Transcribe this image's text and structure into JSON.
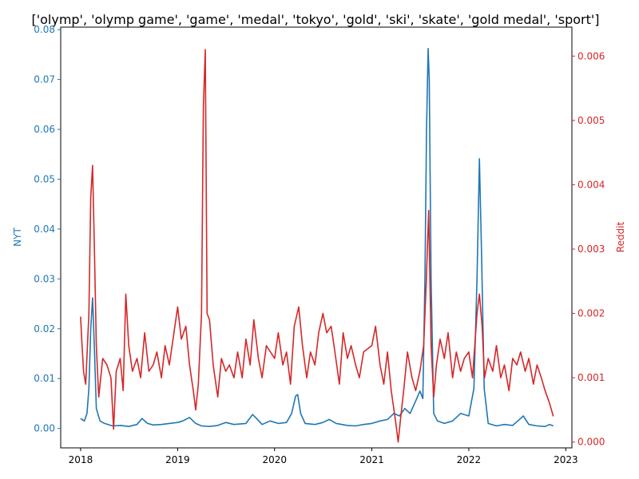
{
  "chart_data": {
    "type": "line",
    "title": "['olymp', 'olymp game', 'game', 'medal', 'tokyo', 'gold', 'ski', 'skate', 'gold medal', 'sport']",
    "colors": {
      "nyt": "#1f77b4",
      "reddit": "#d62728",
      "axis": "#000000"
    },
    "x_axis": {
      "label": "",
      "range": [
        "2017-10-18",
        "2023-01-24"
      ],
      "ticks": [
        "2018",
        "2019",
        "2020",
        "2021",
        "2022",
        "2023"
      ],
      "tick_dates": [
        "2018-01-01",
        "2019-01-01",
        "2020-01-01",
        "2021-01-01",
        "2022-01-01",
        "2023-01-01"
      ]
    },
    "y_axis_left": {
      "label": "NYT",
      "range": [
        -0.0039,
        0.0805
      ],
      "ticks": [
        "0.00",
        "0.01",
        "0.02",
        "0.03",
        "0.04",
        "0.05",
        "0.06",
        "0.07",
        "0.08"
      ],
      "tick_values": [
        0,
        0.01,
        0.02,
        0.03,
        0.04,
        0.05,
        0.06,
        0.07,
        0.08
      ]
    },
    "y_axis_right": {
      "label": "Reddit",
      "range": [
        -9e-05,
        0.00645
      ],
      "ticks": [
        "0.000",
        "0.001",
        "0.002",
        "0.003",
        "0.004",
        "0.005",
        "0.006"
      ],
      "tick_values": [
        0,
        0.001,
        0.002,
        0.003,
        0.004,
        0.005,
        0.006
      ]
    },
    "series": [
      {
        "name": "NYT",
        "axis": "left",
        "points": [
          [
            "2018-01-01",
            0.002
          ],
          [
            "2018-01-15",
            0.0015
          ],
          [
            "2018-01-25",
            0.003
          ],
          [
            "2018-02-01",
            0.008
          ],
          [
            "2018-02-08",
            0.02
          ],
          [
            "2018-02-15",
            0.0262
          ],
          [
            "2018-02-22",
            0.016
          ],
          [
            "2018-03-01",
            0.004
          ],
          [
            "2018-03-15",
            0.0015
          ],
          [
            "2018-04-01",
            0.001
          ],
          [
            "2018-05-01",
            0.0005
          ],
          [
            "2018-06-01",
            0.0006
          ],
          [
            "2018-07-01",
            0.0004
          ],
          [
            "2018-08-01",
            0.0008
          ],
          [
            "2018-08-20",
            0.002
          ],
          [
            "2018-09-10",
            0.001
          ],
          [
            "2018-10-01",
            0.0007
          ],
          [
            "2018-11-01",
            0.0008
          ],
          [
            "2018-12-01",
            0.001
          ],
          [
            "2019-01-01",
            0.0012
          ],
          [
            "2019-01-20",
            0.0015
          ],
          [
            "2019-02-15",
            0.0022
          ],
          [
            "2019-03-10",
            0.001
          ],
          [
            "2019-04-01",
            0.0005
          ],
          [
            "2019-05-01",
            0.0004
          ],
          [
            "2019-06-01",
            0.0006
          ],
          [
            "2019-07-01",
            0.0012
          ],
          [
            "2019-08-01",
            0.0008
          ],
          [
            "2019-09-15",
            0.001
          ],
          [
            "2019-10-10",
            0.0028
          ],
          [
            "2019-10-25",
            0.002
          ],
          [
            "2019-11-15",
            0.0008
          ],
          [
            "2019-12-15",
            0.0015
          ],
          [
            "2020-01-15",
            0.001
          ],
          [
            "2020-02-15",
            0.0012
          ],
          [
            "2020-03-05",
            0.003
          ],
          [
            "2020-03-20",
            0.0065
          ],
          [
            "2020-03-28",
            0.0068
          ],
          [
            "2020-04-08",
            0.003
          ],
          [
            "2020-04-25",
            0.001
          ],
          [
            "2020-06-01",
            0.0008
          ],
          [
            "2020-07-01",
            0.0012
          ],
          [
            "2020-07-25",
            0.0018
          ],
          [
            "2020-08-20",
            0.001
          ],
          [
            "2020-10-01",
            0.0006
          ],
          [
            "2020-11-01",
            0.0005
          ],
          [
            "2020-12-01",
            0.0008
          ],
          [
            "2021-01-01",
            0.001
          ],
          [
            "2021-02-01",
            0.0015
          ],
          [
            "2021-03-01",
            0.0018
          ],
          [
            "2021-03-25",
            0.003
          ],
          [
            "2021-04-15",
            0.0025
          ],
          [
            "2021-05-05",
            0.004
          ],
          [
            "2021-05-25",
            0.003
          ],
          [
            "2021-06-15",
            0.0055
          ],
          [
            "2021-07-01",
            0.0075
          ],
          [
            "2021-07-12",
            0.006
          ],
          [
            "2021-07-20",
            0.03
          ],
          [
            "2021-07-26",
            0.06
          ],
          [
            "2021-08-01",
            0.0762
          ],
          [
            "2021-08-05",
            0.07
          ],
          [
            "2021-08-12",
            0.03
          ],
          [
            "2021-08-22",
            0.003
          ],
          [
            "2021-09-05",
            0.0015
          ],
          [
            "2021-10-01",
            0.001
          ],
          [
            "2021-11-01",
            0.0015
          ],
          [
            "2021-12-01",
            0.003
          ],
          [
            "2022-01-01",
            0.0025
          ],
          [
            "2022-01-20",
            0.008
          ],
          [
            "2022-02-01",
            0.03
          ],
          [
            "2022-02-10",
            0.0541
          ],
          [
            "2022-02-18",
            0.035
          ],
          [
            "2022-02-28",
            0.008
          ],
          [
            "2022-03-15",
            0.001
          ],
          [
            "2022-04-15",
            0.0005
          ],
          [
            "2022-05-15",
            0.0008
          ],
          [
            "2022-06-15",
            0.0006
          ],
          [
            "2022-07-15",
            0.002
          ],
          [
            "2022-07-25",
            0.0025
          ],
          [
            "2022-08-15",
            0.0008
          ],
          [
            "2022-09-15",
            0.0005
          ],
          [
            "2022-10-15",
            0.0004
          ],
          [
            "2022-11-01",
            0.0008
          ],
          [
            "2022-11-15",
            0.0005
          ]
        ]
      },
      {
        "name": "Reddit",
        "axis": "right",
        "points": [
          [
            "2018-01-01",
            0.00195
          ],
          [
            "2018-01-05",
            0.0016
          ],
          [
            "2018-01-12",
            0.0011
          ],
          [
            "2018-01-20",
            0.0009
          ],
          [
            "2018-02-01",
            0.002
          ],
          [
            "2018-02-08",
            0.0038
          ],
          [
            "2018-02-15",
            0.0043
          ],
          [
            "2018-02-22",
            0.003
          ],
          [
            "2018-03-01",
            0.0015
          ],
          [
            "2018-03-10",
            0.0007
          ],
          [
            "2018-03-25",
            0.0013
          ],
          [
            "2018-04-10",
            0.0012
          ],
          [
            "2018-04-25",
            0.001
          ],
          [
            "2018-05-05",
            0.0002
          ],
          [
            "2018-05-15",
            0.0011
          ],
          [
            "2018-05-30",
            0.0013
          ],
          [
            "2018-06-10",
            0.0008
          ],
          [
            "2018-06-20",
            0.0023
          ],
          [
            "2018-07-01",
            0.0015
          ],
          [
            "2018-07-15",
            0.0011
          ],
          [
            "2018-08-01",
            0.0013
          ],
          [
            "2018-08-15",
            0.001
          ],
          [
            "2018-08-30",
            0.0017
          ],
          [
            "2018-09-15",
            0.0011
          ],
          [
            "2018-10-01",
            0.0012
          ],
          [
            "2018-10-15",
            0.0014
          ],
          [
            "2018-11-01",
            0.001
          ],
          [
            "2018-11-15",
            0.0015
          ],
          [
            "2018-12-01",
            0.0012
          ],
          [
            "2019-01-01",
            0.0021
          ],
          [
            "2019-01-15",
            0.0016
          ],
          [
            "2019-02-01",
            0.0018
          ],
          [
            "2019-02-15",
            0.0012
          ],
          [
            "2019-03-01",
            0.0008
          ],
          [
            "2019-03-10",
            0.0005
          ],
          [
            "2019-03-20",
            0.0009
          ],
          [
            "2019-04-01",
            0.002
          ],
          [
            "2019-04-08",
            0.0052
          ],
          [
            "2019-04-15",
            0.0061
          ],
          [
            "2019-04-22",
            0.002
          ],
          [
            "2019-05-01",
            0.0019
          ],
          [
            "2019-05-15",
            0.0012
          ],
          [
            "2019-06-01",
            0.0007
          ],
          [
            "2019-06-15",
            0.0013
          ],
          [
            "2019-07-01",
            0.0011
          ],
          [
            "2019-07-15",
            0.0012
          ],
          [
            "2019-08-01",
            0.001
          ],
          [
            "2019-08-15",
            0.0014
          ],
          [
            "2019-09-01",
            0.001
          ],
          [
            "2019-09-15",
            0.0016
          ],
          [
            "2019-10-01",
            0.0012
          ],
          [
            "2019-10-15",
            0.0019
          ],
          [
            "2019-11-01",
            0.0013
          ],
          [
            "2019-11-15",
            0.001
          ],
          [
            "2019-12-01",
            0.0015
          ],
          [
            "2020-01-01",
            0.0013
          ],
          [
            "2020-01-15",
            0.0017
          ],
          [
            "2020-02-01",
            0.0012
          ],
          [
            "2020-02-15",
            0.0014
          ],
          [
            "2020-03-01",
            0.0009
          ],
          [
            "2020-03-15",
            0.0018
          ],
          [
            "2020-04-01",
            0.0021
          ],
          [
            "2020-04-15",
            0.0015
          ],
          [
            "2020-05-01",
            0.001
          ],
          [
            "2020-05-15",
            0.0014
          ],
          [
            "2020-06-01",
            0.0012
          ],
          [
            "2020-06-15",
            0.0017
          ],
          [
            "2020-07-01",
            0.002
          ],
          [
            "2020-07-15",
            0.0017
          ],
          [
            "2020-08-01",
            0.0018
          ],
          [
            "2020-08-15",
            0.0014
          ],
          [
            "2020-09-01",
            0.0009
          ],
          [
            "2020-09-15",
            0.0017
          ],
          [
            "2020-10-01",
            0.0013
          ],
          [
            "2020-10-15",
            0.0015
          ],
          [
            "2020-11-01",
            0.0012
          ],
          [
            "2020-11-15",
            0.001
          ],
          [
            "2020-12-01",
            0.0014
          ],
          [
            "2021-01-01",
            0.0015
          ],
          [
            "2021-01-15",
            0.0018
          ],
          [
            "2021-02-01",
            0.0012
          ],
          [
            "2021-02-15",
            0.0009
          ],
          [
            "2021-03-01",
            0.0014
          ],
          [
            "2021-03-15",
            0.0008
          ],
          [
            "2021-04-01",
            0.0003
          ],
          [
            "2021-04-10",
            0.0
          ],
          [
            "2021-04-20",
            0.0004
          ],
          [
            "2021-05-01",
            0.0008
          ],
          [
            "2021-05-15",
            0.0014
          ],
          [
            "2021-06-01",
            0.001
          ],
          [
            "2021-06-15",
            0.0008
          ],
          [
            "2021-07-01",
            0.0011
          ],
          [
            "2021-07-15",
            0.0015
          ],
          [
            "2021-07-25",
            0.0025
          ],
          [
            "2021-08-03",
            0.0036
          ],
          [
            "2021-08-12",
            0.0015
          ],
          [
            "2021-08-22",
            0.0007
          ],
          [
            "2021-09-01",
            0.0012
          ],
          [
            "2021-09-15",
            0.0016
          ],
          [
            "2021-10-01",
            0.0013
          ],
          [
            "2021-10-15",
            0.0017
          ],
          [
            "2021-11-01",
            0.001
          ],
          [
            "2021-11-15",
            0.0014
          ],
          [
            "2021-12-01",
            0.0011
          ],
          [
            "2021-12-15",
            0.0013
          ],
          [
            "2022-01-01",
            0.0014
          ],
          [
            "2022-01-15",
            0.001
          ],
          [
            "2022-02-01",
            0.002
          ],
          [
            "2022-02-10",
            0.0023
          ],
          [
            "2022-02-20",
            0.0018
          ],
          [
            "2022-03-01",
            0.001
          ],
          [
            "2022-03-15",
            0.0013
          ],
          [
            "2022-04-01",
            0.0011
          ],
          [
            "2022-04-15",
            0.0015
          ],
          [
            "2022-05-01",
            0.001
          ],
          [
            "2022-05-15",
            0.0012
          ],
          [
            "2022-06-01",
            0.0008
          ],
          [
            "2022-06-15",
            0.0013
          ],
          [
            "2022-07-01",
            0.0012
          ],
          [
            "2022-07-15",
            0.0014
          ],
          [
            "2022-08-01",
            0.0011
          ],
          [
            "2022-08-15",
            0.0013
          ],
          [
            "2022-09-01",
            0.0009
          ],
          [
            "2022-09-15",
            0.0012
          ],
          [
            "2022-10-01",
            0.001
          ],
          [
            "2022-10-15",
            0.0008
          ],
          [
            "2022-11-01",
            0.0006
          ],
          [
            "2022-11-15",
            0.0004
          ]
        ]
      }
    ]
  }
}
